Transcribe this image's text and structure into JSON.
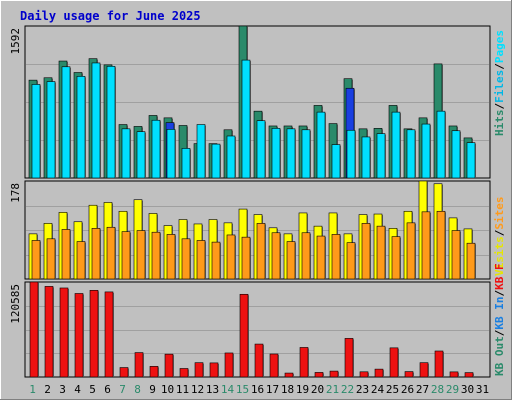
{
  "title": "Daily usage for June 2025",
  "colors": {
    "background": "#c0c0c0",
    "grid": "#a0a0a0",
    "title": "#0000cc",
    "hits": "#2a8a6a",
    "files": "#00e0ff",
    "pages": "#1a3fe0",
    "visits": "#ffff00",
    "sites": "#ff9a1a",
    "kbf": "#ee1111",
    "weekend_label": "#2a8a6a",
    "weekday_label": "#000000"
  },
  "panels": {
    "top": {
      "max_label": "1592",
      "legend": [
        {
          "text": "Hits",
          "color": "#2a8a6a"
        },
        {
          "text": "/",
          "color": "#000000"
        },
        {
          "text": "Files",
          "color": "#00b7e6"
        },
        {
          "text": "/",
          "color": "#000000"
        },
        {
          "text": "Pages",
          "color": "#00e0ff"
        }
      ]
    },
    "middle": {
      "max_label": "178",
      "legend": [
        {
          "text": "Visits",
          "color": "#e6e600"
        },
        {
          "text": "/",
          "color": "#000000"
        },
        {
          "text": "Sites",
          "color": "#ff9a1a"
        }
      ]
    },
    "bottom": {
      "max_label": "120585",
      "legend": [
        {
          "text": "KB Out",
          "color": "#2a8a6a"
        },
        {
          "text": "/",
          "color": "#000000"
        },
        {
          "text": "KB In",
          "color": "#1a7fe0"
        },
        {
          "text": "/",
          "color": "#000000"
        },
        {
          "text": "KB F",
          "color": "#ee1111"
        }
      ]
    }
  },
  "chart_data": {
    "type": "bar",
    "title": "Daily usage for June 2025",
    "categories": [
      "1",
      "2",
      "3",
      "4",
      "5",
      "6",
      "7",
      "8",
      "9",
      "10",
      "11",
      "12",
      "13",
      "14",
      "15",
      "16",
      "17",
      "18",
      "19",
      "20",
      "21",
      "22",
      "23",
      "24",
      "25",
      "26",
      "27",
      "28",
      "29",
      "30",
      "31"
    ],
    "weekend_days": [
      "1",
      "7",
      "8",
      "14",
      "15",
      "21",
      "22",
      "28",
      "29"
    ],
    "series": [
      {
        "name": "Hits",
        "panel": "top",
        "max": 1592,
        "values": [
          1025,
          1050,
          1225,
          1105,
          1250,
          1185,
          560,
          540,
          655,
          630,
          550,
          360,
          360,
          505,
          1592,
          700,
          545,
          545,
          545,
          760,
          570,
          1040,
          515,
          520,
          760,
          515,
          630,
          1195,
          545,
          420,
          null
        ]
      },
      {
        "name": "Files",
        "panel": "top",
        "max": 1592,
        "values": [
          980,
          1010,
          1165,
          1065,
          1205,
          1170,
          515,
          485,
          605,
          510,
          310,
          560,
          355,
          440,
          1235,
          600,
          520,
          515,
          505,
          690,
          350,
          500,
          430,
          465,
          690,
          505,
          565,
          700,
          495,
          370,
          null
        ]
      },
      {
        "name": "Pages",
        "panel": "top",
        "max": 1592,
        "values": [
          980,
          1010,
          1165,
          1065,
          1205,
          1170,
          515,
          485,
          605,
          580,
          310,
          560,
          355,
          440,
          1235,
          600,
          520,
          515,
          505,
          690,
          350,
          940,
          430,
          465,
          690,
          505,
          565,
          700,
          495,
          370,
          null
        ]
      },
      {
        "name": "Visits",
        "panel": "middle",
        "max": 178,
        "values": [
          82,
          101,
          121,
          104,
          134,
          139,
          123,
          144,
          119,
          97,
          108,
          100,
          108,
          102,
          127,
          117,
          93,
          82,
          120,
          96,
          120,
          82,
          117,
          118,
          92,
          123,
          178,
          173,
          111,
          91,
          null
        ]
      },
      {
        "name": "Sites",
        "panel": "middle",
        "max": 178,
        "values": [
          70,
          73,
          90,
          68,
          92,
          94,
          86,
          88,
          85,
          81,
          73,
          70,
          67,
          80,
          76,
          101,
          84,
          68,
          84,
          78,
          81,
          66,
          101,
          96,
          77,
          102,
          122,
          123,
          88,
          65,
          null
        ]
      },
      {
        "name": "KB F",
        "panel": "bottom",
        "max": 120585,
        "values": [
          120585,
          115000,
          113000,
          106000,
          110000,
          108000,
          12000,
          31000,
          13500,
          29000,
          10800,
          18200,
          17900,
          30500,
          105000,
          41800,
          29200,
          5000,
          37500,
          5800,
          7500,
          49000,
          6600,
          10000,
          37000,
          6900,
          18200,
          33000,
          6500,
          5600,
          null
        ]
      }
    ]
  }
}
